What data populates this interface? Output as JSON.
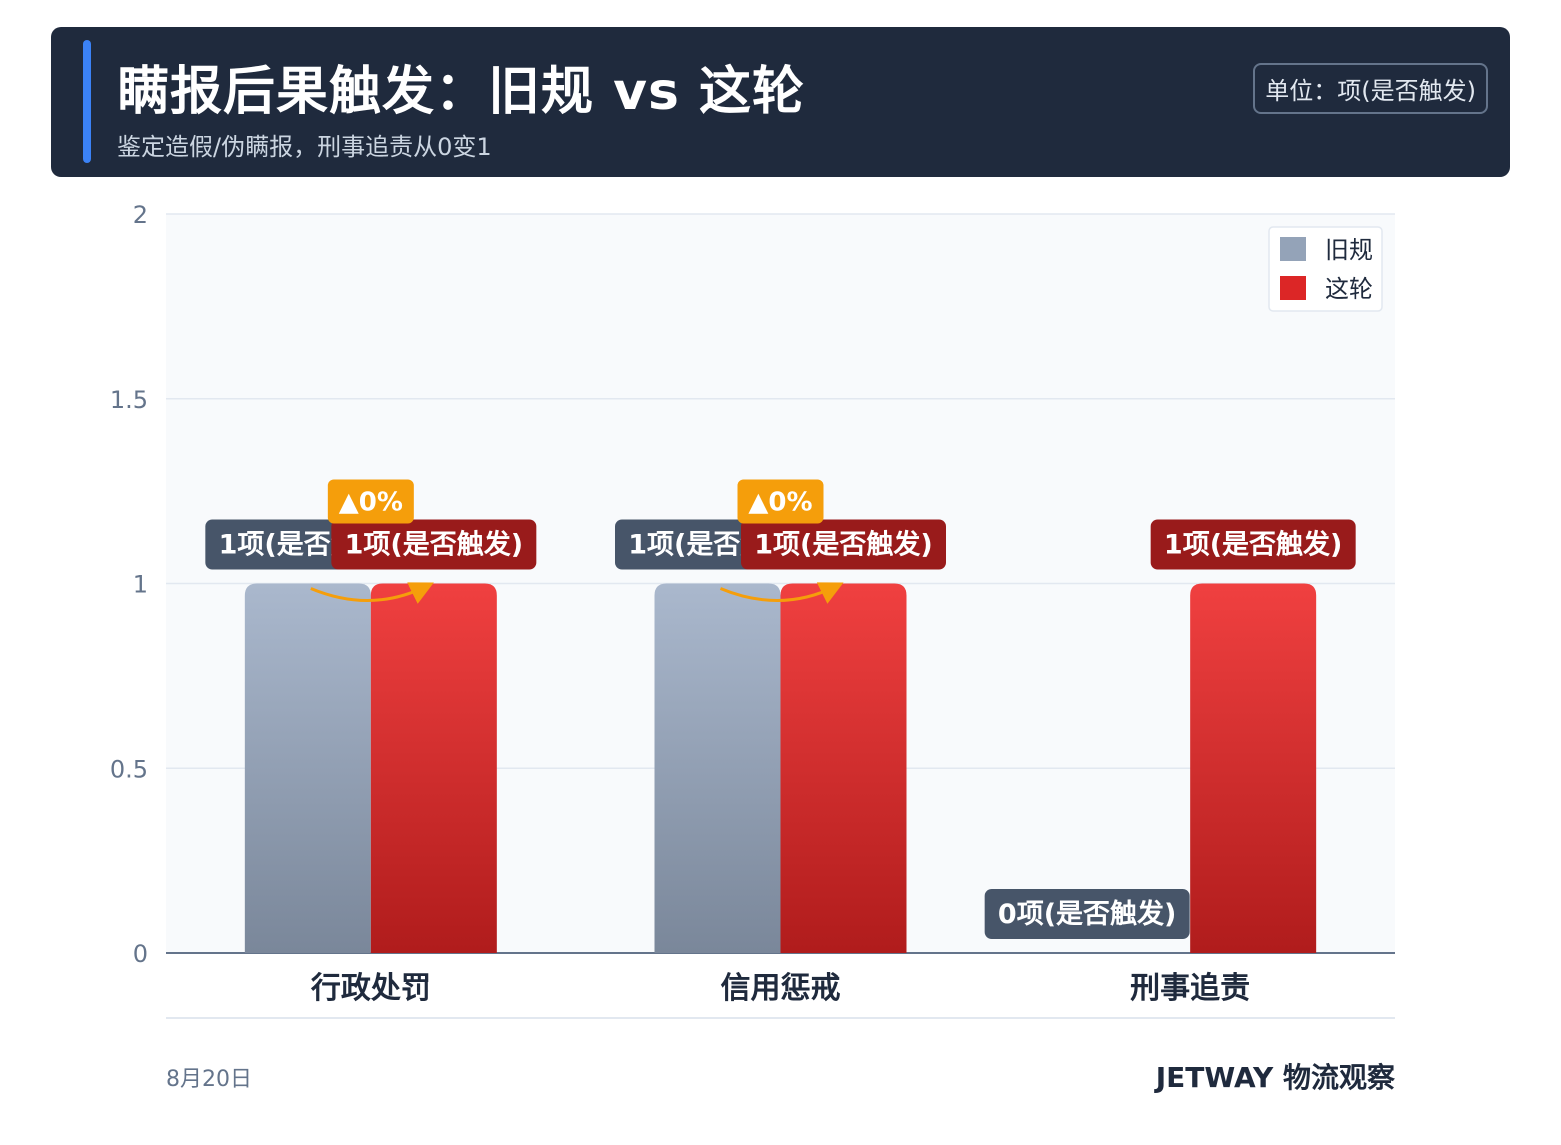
{
  "header": {
    "title": "瞒报后果触发：旧规 vs 这轮",
    "subtitle": "鉴定造假/伪瞒报，刑事追责从0变1",
    "unit": "单位：项(是否触发)"
  },
  "footer": {
    "date": "8月20日",
    "brand": "JETWAY 物流观察"
  },
  "colors": {
    "header_bg": "#1f2a3d",
    "accent": "#3b82f6",
    "old_series": "#94a3b8",
    "new_series": "#dc2626",
    "change_badge": "#f59e0b",
    "old_label_bg": "#475569",
    "new_label_bg": "#991b1b"
  },
  "chart_data": {
    "type": "bar",
    "categories": [
      "行政处罚",
      "信用惩戒",
      "刑事追责"
    ],
    "series": [
      {
        "name": "旧规",
        "values": [
          1,
          1,
          0
        ],
        "labels": [
          "1项(是否触发)",
          "1项(是否触发)",
          "0项(是否触发)"
        ]
      },
      {
        "name": "这轮",
        "values": [
          1,
          1,
          1
        ],
        "labels": [
          "1项(是否触发)",
          "1项(是否触发)",
          "1项(是否触发)"
        ]
      }
    ],
    "change_labels": [
      "▲0%",
      "▲0%",
      ""
    ],
    "ylim": [
      0,
      2
    ],
    "yticks": [
      "0",
      "0.5",
      "1",
      "1.5",
      "2"
    ],
    "legend": "top-right",
    "grid": true
  }
}
